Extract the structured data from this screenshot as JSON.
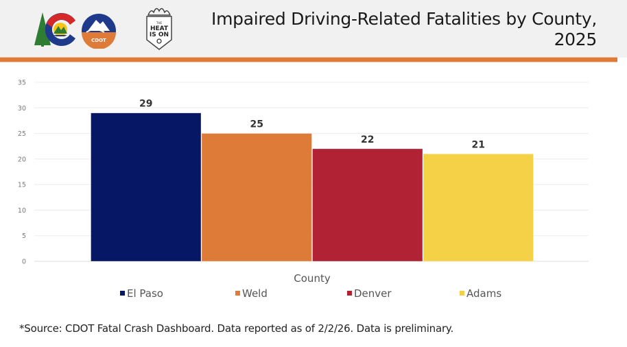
{
  "header": {
    "title_line1": "Impaired Driving-Related Fatalities by County,",
    "title_line2": "2025",
    "logos": [
      {
        "icon": "colorado-state-logo-icon"
      },
      {
        "icon": "cdot-logo-icon",
        "text": "CDOT"
      },
      {
        "icon": "heat-is-on-badge-icon",
        "text": "THE HEAT IS ON"
      }
    ],
    "accent_color": "#df7b39"
  },
  "chart_data": {
    "type": "bar",
    "title": "Impaired Driving-Related Fatalities by County, 2025",
    "xlabel": "County",
    "ylabel": "",
    "categories": [
      "El Paso",
      "Weld",
      "Denver",
      "Adams"
    ],
    "values": [
      29,
      25,
      22,
      21
    ],
    "colors": [
      "#061865",
      "#df7b39",
      "#b02234",
      "#f4d147"
    ],
    "ylim": [
      0,
      35
    ],
    "yticks": [
      0,
      5,
      10,
      15,
      20,
      25,
      30,
      35
    ],
    "grid": true,
    "data_labels": true,
    "legend": {
      "position": "bottom",
      "entries": [
        "El Paso",
        "Weld",
        "Denver",
        "Adams"
      ]
    }
  },
  "footer": {
    "source": "*Source: CDOT Fatal Crash Dashboard. Data reported as of 2/2/26. Data is preliminary."
  }
}
